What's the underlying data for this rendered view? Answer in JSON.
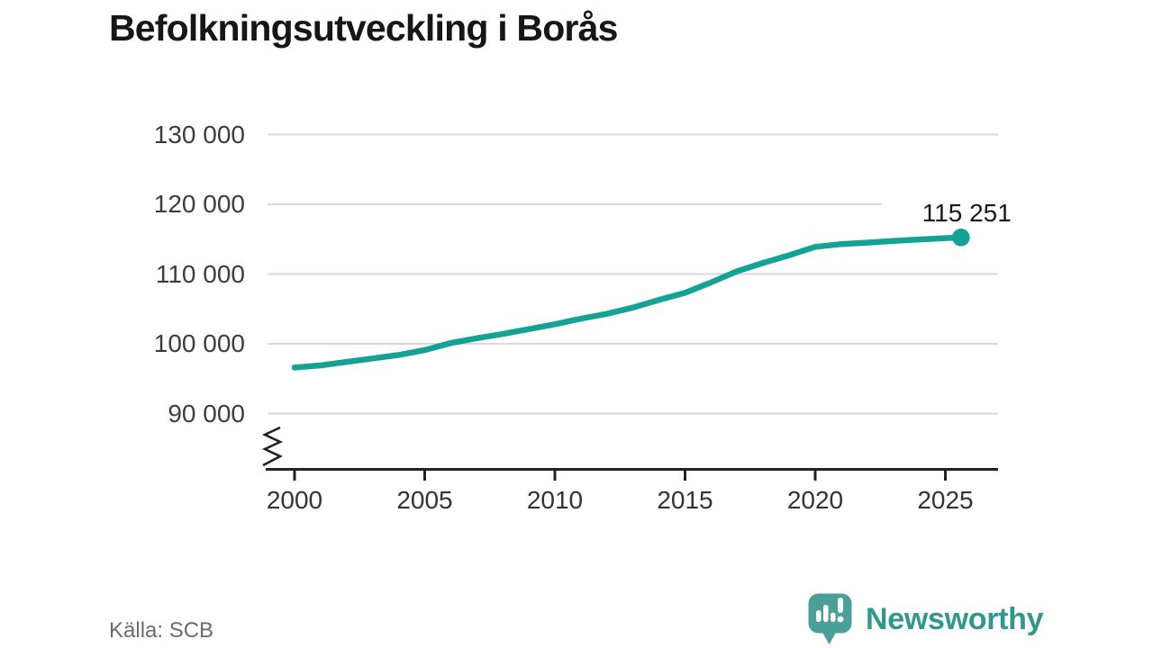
{
  "title": "Befolkningsutveckling i Borås",
  "source": "Källa: SCB",
  "branding": {
    "name": "Newsworthy",
    "icon": "newsworthy-speech-bubble-chart-icon"
  },
  "colors": {
    "series": "#14a294",
    "grid": "#d9d9d9",
    "axis": "#222222",
    "title_text": "#161616",
    "y_tick_text": "#3d3d3d",
    "x_tick_text": "#333333",
    "annotation_text": "#191919",
    "source_text": "#6b6b6b",
    "brand_text": "#2f988d",
    "brand_icon": "#4aa099"
  },
  "chart_data": {
    "type": "line",
    "title": "Befolkningsutveckling i Borås",
    "xlabel": "",
    "ylabel": "",
    "legend": "none",
    "grid": true,
    "y_axis_break": true,
    "x_range": [
      1999.0,
      2026.9
    ],
    "y_range": [
      85000,
      133000
    ],
    "x_ticks": {
      "values": [
        2000,
        2005,
        2010,
        2015,
        2020,
        2025
      ],
      "labels": [
        "2000",
        "2005",
        "2010",
        "2015",
        "2020",
        "2025"
      ]
    },
    "y_ticks": {
      "values": [
        130000,
        120000,
        110000,
        100000,
        90000
      ],
      "labels": [
        "130 000",
        "120 000",
        "110 000",
        "100 000",
        "90 000"
      ]
    },
    "series_name": "Befolkning i Borås",
    "x": [
      2000,
      2001,
      2002,
      2003,
      2004,
      2005,
      2006,
      2007,
      2008,
      2009,
      2010,
      2011,
      2012,
      2013,
      2014,
      2015,
      2016,
      2017,
      2018,
      2019,
      2020,
      2021,
      2022,
      2023,
      2024,
      2025,
      2025.6
    ],
    "values": [
      96600,
      96900,
      97400,
      97900,
      98400,
      99100,
      100100,
      100800,
      101400,
      102100,
      102800,
      103600,
      104300,
      105200,
      106300,
      107300,
      108800,
      110400,
      111600,
      112700,
      113900,
      114300,
      114500,
      114750,
      114950,
      115150,
      115251
    ],
    "end_label": "115 251",
    "end_value": 115251,
    "source": "Källa: SCB"
  }
}
